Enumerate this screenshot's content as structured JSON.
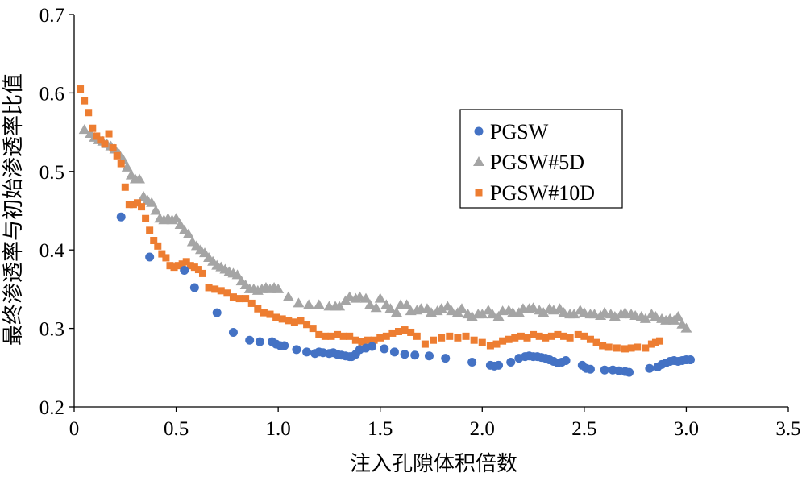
{
  "chart_data": {
    "type": "scatter",
    "title": "",
    "xlabel": "注入孔隙体积倍数",
    "ylabel": "最终渗透率与初始渗透率比值",
    "xlim": [
      0,
      3.5
    ],
    "ylim": [
      0.2,
      0.7
    ],
    "x_ticks": [
      "0",
      "0.5",
      "1.0",
      "1.5",
      "2.0",
      "2.5",
      "3.0",
      "3.5"
    ],
    "y_ticks": [
      "0.2",
      "0.3",
      "0.4",
      "0.5",
      "0.6",
      "0.7"
    ],
    "grid": false,
    "legend_position": "right",
    "series": [
      {
        "name": "PGSW",
        "marker": "circle",
        "color": "#4472C4",
        "x": [
          0.23,
          0.37,
          0.54,
          0.59,
          0.7,
          0.78,
          0.86,
          0.91,
          0.97,
          0.99,
          1.01,
          1.03,
          1.09,
          1.14,
          1.18,
          1.2,
          1.22,
          1.25,
          1.27,
          1.29,
          1.31,
          1.33,
          1.35,
          1.36,
          1.38,
          1.4,
          1.43,
          1.46,
          1.52,
          1.57,
          1.62,
          1.67,
          1.74,
          1.82,
          1.95,
          2.04,
          2.06,
          2.08,
          2.14,
          2.18,
          2.21,
          2.23,
          2.25,
          2.27,
          2.29,
          2.31,
          2.33,
          2.35,
          2.37,
          2.39,
          2.41,
          2.49,
          2.51,
          2.53,
          2.6,
          2.64,
          2.67,
          2.7,
          2.72,
          2.82,
          2.86,
          2.88,
          2.9,
          2.92,
          2.94,
          2.96,
          2.98,
          3.0,
          3.02
        ],
        "y": [
          0.442,
          0.391,
          0.374,
          0.352,
          0.32,
          0.295,
          0.285,
          0.283,
          0.283,
          0.28,
          0.278,
          0.278,
          0.273,
          0.27,
          0.268,
          0.27,
          0.269,
          0.268,
          0.269,
          0.267,
          0.266,
          0.265,
          0.264,
          0.264,
          0.267,
          0.273,
          0.275,
          0.277,
          0.274,
          0.27,
          0.267,
          0.266,
          0.265,
          0.262,
          0.257,
          0.253,
          0.252,
          0.253,
          0.257,
          0.262,
          0.264,
          0.265,
          0.264,
          0.264,
          0.263,
          0.262,
          0.26,
          0.258,
          0.256,
          0.257,
          0.259,
          0.253,
          0.249,
          0.248,
          0.247,
          0.247,
          0.246,
          0.245,
          0.244,
          0.249,
          0.251,
          0.254,
          0.256,
          0.258,
          0.259,
          0.258,
          0.259,
          0.26,
          0.26
        ]
      },
      {
        "name": "PGSW#5D",
        "marker": "triangle",
        "color": "#A5A5A5",
        "x": [
          0.05,
          0.08,
          0.1,
          0.12,
          0.14,
          0.16,
          0.18,
          0.2,
          0.22,
          0.24,
          0.26,
          0.28,
          0.3,
          0.32,
          0.34,
          0.36,
          0.38,
          0.4,
          0.42,
          0.44,
          0.46,
          0.48,
          0.5,
          0.52,
          0.54,
          0.56,
          0.58,
          0.6,
          0.62,
          0.64,
          0.66,
          0.68,
          0.7,
          0.72,
          0.74,
          0.76,
          0.78,
          0.8,
          0.82,
          0.84,
          0.86,
          0.88,
          0.9,
          0.92,
          0.94,
          0.96,
          0.98,
          1.0,
          1.05,
          1.1,
          1.15,
          1.2,
          1.25,
          1.28,
          1.3,
          1.33,
          1.35,
          1.38,
          1.4,
          1.43,
          1.45,
          1.48,
          1.5,
          1.53,
          1.55,
          1.58,
          1.6,
          1.63,
          1.65,
          1.68,
          1.7,
          1.73,
          1.75,
          1.78,
          1.8,
          1.83,
          1.85,
          1.88,
          1.9,
          1.93,
          1.95,
          1.98,
          2.0,
          2.03,
          2.05,
          2.08,
          2.1,
          2.13,
          2.15,
          2.18,
          2.2,
          2.23,
          2.25,
          2.28,
          2.3,
          2.33,
          2.35,
          2.38,
          2.4,
          2.43,
          2.45,
          2.48,
          2.5,
          2.53,
          2.55,
          2.58,
          2.6,
          2.63,
          2.65,
          2.68,
          2.7,
          2.73,
          2.75,
          2.78,
          2.8,
          2.83,
          2.85,
          2.88,
          2.9,
          2.92,
          2.94,
          2.96,
          2.98,
          3.0
        ],
        "y": [
          0.553,
          0.548,
          0.543,
          0.54,
          0.538,
          0.535,
          0.532,
          0.528,
          0.522,
          0.515,
          0.505,
          0.495,
          0.49,
          0.49,
          0.468,
          0.463,
          0.46,
          0.45,
          0.44,
          0.438,
          0.44,
          0.438,
          0.44,
          0.432,
          0.425,
          0.42,
          0.41,
          0.405,
          0.4,
          0.396,
          0.39,
          0.385,
          0.38,
          0.378,
          0.375,
          0.372,
          0.37,
          0.368,
          0.36,
          0.355,
          0.35,
          0.35,
          0.348,
          0.35,
          0.352,
          0.35,
          0.352,
          0.35,
          0.34,
          0.332,
          0.33,
          0.33,
          0.328,
          0.328,
          0.328,
          0.335,
          0.34,
          0.338,
          0.34,
          0.338,
          0.33,
          0.326,
          0.338,
          0.33,
          0.325,
          0.32,
          0.33,
          0.33,
          0.322,
          0.323,
          0.325,
          0.325,
          0.32,
          0.322,
          0.325,
          0.328,
          0.322,
          0.32,
          0.325,
          0.318,
          0.315,
          0.318,
          0.318,
          0.323,
          0.318,
          0.315,
          0.322,
          0.323,
          0.32,
          0.32,
          0.325,
          0.325,
          0.326,
          0.323,
          0.32,
          0.325,
          0.323,
          0.325,
          0.32,
          0.318,
          0.318,
          0.323,
          0.32,
          0.318,
          0.318,
          0.316,
          0.32,
          0.318,
          0.315,
          0.318,
          0.32,
          0.318,
          0.316,
          0.315,
          0.312,
          0.318,
          0.315,
          0.312,
          0.31,
          0.312,
          0.31,
          0.315,
          0.305,
          0.3
        ]
      },
      {
        "name": "PGSW#10D",
        "marker": "square",
        "color": "#ED7D31",
        "x": [
          0.03,
          0.05,
          0.07,
          0.09,
          0.11,
          0.13,
          0.15,
          0.17,
          0.19,
          0.21,
          0.23,
          0.25,
          0.27,
          0.29,
          0.31,
          0.33,
          0.35,
          0.37,
          0.39,
          0.41,
          0.43,
          0.45,
          0.47,
          0.49,
          0.51,
          0.53,
          0.55,
          0.57,
          0.59,
          0.61,
          0.63,
          0.66,
          0.69,
          0.72,
          0.75,
          0.78,
          0.81,
          0.84,
          0.87,
          0.9,
          0.93,
          0.96,
          0.99,
          1.02,
          1.05,
          1.08,
          1.11,
          1.14,
          1.17,
          1.2,
          1.23,
          1.26,
          1.29,
          1.32,
          1.35,
          1.38,
          1.41,
          1.44,
          1.47,
          1.5,
          1.53,
          1.56,
          1.59,
          1.62,
          1.65,
          1.68,
          1.72,
          1.76,
          1.8,
          1.84,
          1.88,
          1.92,
          1.96,
          2.0,
          2.04,
          2.07,
          2.1,
          2.13,
          2.16,
          2.19,
          2.22,
          2.25,
          2.28,
          2.31,
          2.34,
          2.37,
          2.4,
          2.43,
          2.47,
          2.5,
          2.53,
          2.56,
          2.59,
          2.62,
          2.66,
          2.7,
          2.73,
          2.76,
          2.8,
          2.83,
          2.85,
          2.87
        ],
        "y": [
          0.605,
          0.59,
          0.575,
          0.555,
          0.545,
          0.54,
          0.535,
          0.548,
          0.53,
          0.52,
          0.51,
          0.48,
          0.458,
          0.458,
          0.46,
          0.455,
          0.44,
          0.425,
          0.412,
          0.405,
          0.395,
          0.39,
          0.38,
          0.378,
          0.38,
          0.382,
          0.385,
          0.38,
          0.378,
          0.375,
          0.37,
          0.352,
          0.35,
          0.348,
          0.345,
          0.34,
          0.338,
          0.338,
          0.332,
          0.325,
          0.32,
          0.318,
          0.314,
          0.312,
          0.31,
          0.308,
          0.31,
          0.305,
          0.3,
          0.292,
          0.29,
          0.29,
          0.292,
          0.29,
          0.29,
          0.285,
          0.283,
          0.285,
          0.285,
          0.288,
          0.29,
          0.294,
          0.296,
          0.298,
          0.295,
          0.29,
          0.28,
          0.285,
          0.288,
          0.29,
          0.288,
          0.29,
          0.285,
          0.282,
          0.278,
          0.28,
          0.284,
          0.286,
          0.288,
          0.29,
          0.288,
          0.292,
          0.29,
          0.288,
          0.29,
          0.292,
          0.29,
          0.288,
          0.292,
          0.29,
          0.286,
          0.282,
          0.278,
          0.276,
          0.275,
          0.274,
          0.275,
          0.276,
          0.275,
          0.28,
          0.282,
          0.284
        ]
      }
    ]
  }
}
